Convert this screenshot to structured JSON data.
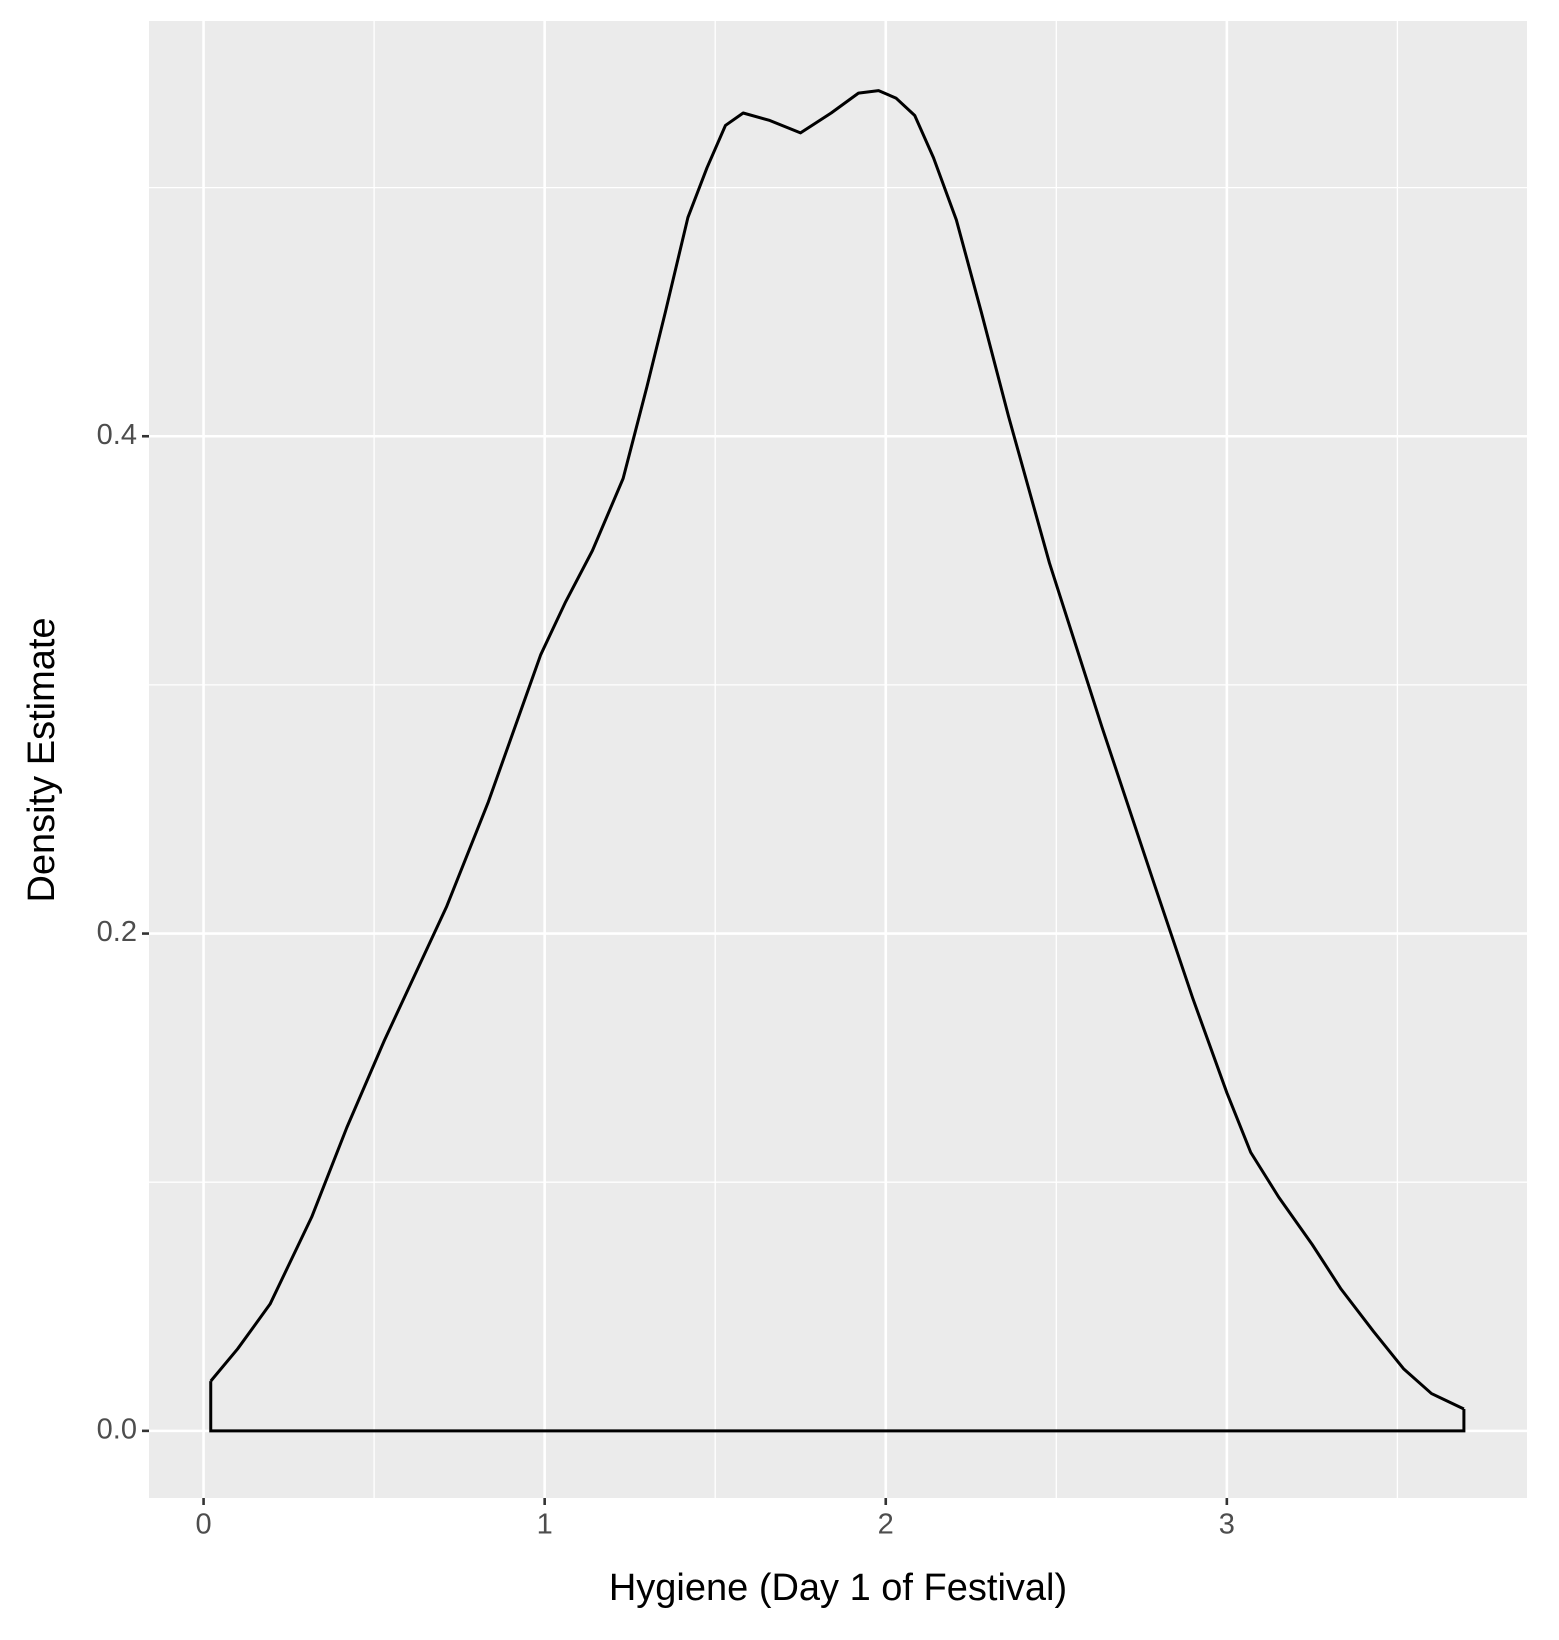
{
  "chart_data": {
    "type": "density",
    "x_label": "Hygiene (Day 1 of Festival)",
    "y_label": "Density Estimate",
    "x": [
      0.021,
      0.1,
      0.195,
      0.317,
      0.42,
      0.53,
      0.713,
      0.835,
      0.988,
      1.06,
      1.14,
      1.23,
      1.3,
      1.354,
      1.42,
      1.476,
      1.53,
      1.582,
      1.66,
      1.75,
      1.84,
      1.92,
      1.979,
      2.03,
      2.085,
      2.14,
      2.207,
      2.28,
      2.36,
      2.48,
      2.634,
      2.787,
      2.9,
      3.0,
      3.07,
      3.152,
      3.25,
      3.335,
      3.43,
      3.518,
      3.6,
      3.695
    ],
    "y": [
      0.02,
      0.033,
      0.051,
      0.086,
      0.122,
      0.157,
      0.211,
      0.253,
      0.312,
      0.333,
      0.354,
      0.383,
      0.42,
      0.45,
      0.488,
      0.508,
      0.525,
      0.53,
      0.527,
      0.522,
      0.53,
      0.538,
      0.539,
      0.536,
      0.529,
      0.512,
      0.487,
      0.45,
      0.408,
      0.349,
      0.283,
      0.22,
      0.174,
      0.136,
      0.112,
      0.094,
      0.075,
      0.057,
      0.04,
      0.025,
      0.015,
      0.0088
    ],
    "color": "#000000",
    "xlim": [
      -0.16,
      3.88
    ],
    "ylim": [
      -0.027,
      0.567
    ],
    "xticks": [
      0,
      1,
      2,
      3
    ],
    "yticks": [
      {
        "value": 0,
        "label": "0.0"
      },
      0.2,
      0.4
    ],
    "minor_xticks": [
      0.5,
      1.5,
      2.5,
      3.5
    ],
    "minor_yticks": [
      0.1,
      0.3,
      0.5
    ],
    "grid": true
  }
}
